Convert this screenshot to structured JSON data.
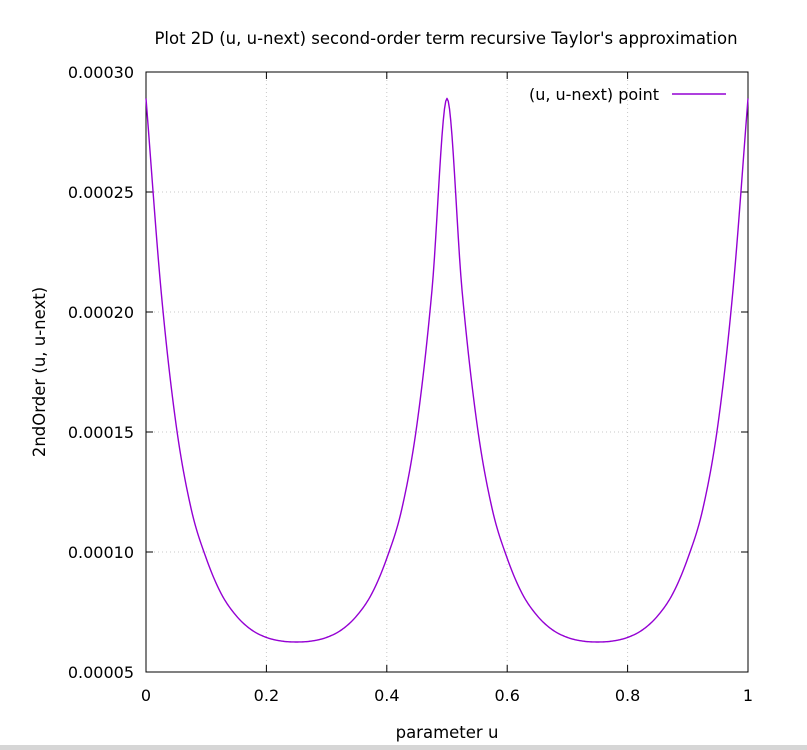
{
  "chart_data": {
    "type": "line",
    "title": "Plot 2D (u, u-next) second-order term recursive Taylor's approximation",
    "xlabel": "parameter u",
    "ylabel": "2ndOrder (u, u-next)",
    "xlim": [
      0,
      1
    ],
    "ylim": [
      5e-05,
      0.0003
    ],
    "x_ticks": [
      0,
      0.2,
      0.4,
      0.6,
      0.8,
      1
    ],
    "x_tick_labels": [
      "0",
      "0.2",
      "0.4",
      "0.6",
      "0.8",
      "1"
    ],
    "y_ticks": [
      5e-05,
      0.0001,
      0.00015,
      0.0002,
      0.00025,
      0.0003
    ],
    "y_tick_labels": [
      "0.00005",
      "0.00010",
      "0.00015",
      "0.00020",
      "0.00025",
      "0.00030"
    ],
    "grid": true,
    "legend_position": "top-right",
    "series": [
      {
        "name": "(u, u-next) point",
        "color": "#9400d3",
        "x": [
          0,
          0.025,
          0.05,
          0.075,
          0.1,
          0.125,
          0.15,
          0.175,
          0.2,
          0.225,
          0.25,
          0.275,
          0.3,
          0.325,
          0.35,
          0.375,
          0.4,
          0.425,
          0.45,
          0.475,
          0.5,
          0.525,
          0.55,
          0.575,
          0.6,
          0.625,
          0.65,
          0.675,
          0.7,
          0.725,
          0.75,
          0.775,
          0.8,
          0.825,
          0.85,
          0.875,
          0.9,
          0.925,
          0.95,
          0.975,
          1
        ],
        "y": [
          0.000289,
          0.000209,
          0.000153,
          0.000118,
          9.74e-05,
          8.26e-05,
          7.34e-05,
          6.76e-05,
          6.44e-05,
          6.29e-05,
          6.25e-05,
          6.29e-05,
          6.44e-05,
          6.76e-05,
          7.34e-05,
          8.26e-05,
          9.74e-05,
          0.000118,
          0.000153,
          0.000209,
          0.000289,
          0.000209,
          0.000153,
          0.000118,
          9.74e-05,
          8.26e-05,
          7.34e-05,
          6.76e-05,
          6.44e-05,
          6.29e-05,
          6.25e-05,
          6.29e-05,
          6.44e-05,
          6.76e-05,
          7.34e-05,
          8.26e-05,
          9.74e-05,
          0.000118,
          0.000153,
          0.000209,
          0.000289
        ]
      }
    ]
  }
}
